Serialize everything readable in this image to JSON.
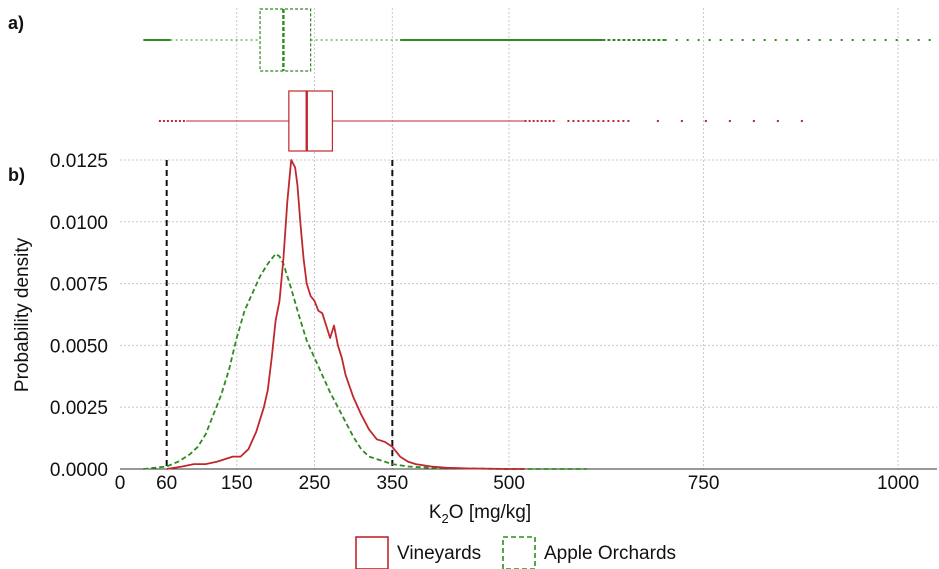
{
  "chart_data": {
    "type": "line",
    "panels": [
      "a)",
      "b)"
    ],
    "xlabel": {
      "base": "K",
      "sub": "2",
      "rest": "O [mg/kg]"
    },
    "ylabel": "Probability density",
    "xlim": [
      0,
      1050
    ],
    "ylim": [
      0,
      0.0125
    ],
    "xticks": [
      0,
      60,
      150,
      250,
      350,
      500,
      750,
      1000
    ],
    "xtick_labels": [
      "0",
      "60",
      "150",
      "250",
      "350",
      "500",
      "750",
      "1000"
    ],
    "yticks": [
      0,
      0.0025,
      0.005,
      0.0075,
      0.01,
      0.0125
    ],
    "ytick_labels": [
      "0.0000",
      "0.0025",
      "0.0050",
      "0.0075",
      "0.0100",
      "0.0125"
    ],
    "vlines": [
      60,
      350
    ],
    "grid": true,
    "legend_position": "bottom-center",
    "series": [
      {
        "name": "Vineyards",
        "color": "#c0282d",
        "dash": "solid",
        "density": {
          "x": [
            60,
            80,
            95,
            110,
            125,
            135,
            145,
            155,
            165,
            175,
            185,
            190,
            195,
            200,
            205,
            210,
            215,
            220,
            225,
            228,
            232,
            236,
            240,
            245,
            250,
            255,
            260,
            265,
            270,
            275,
            280,
            285,
            290,
            300,
            310,
            320,
            330,
            340,
            350,
            360,
            370,
            380,
            400,
            420,
            450,
            500,
            520
          ],
          "y": [
            0,
            0.0001,
            0.0002,
            0.0002,
            0.0003,
            0.0004,
            0.0005,
            0.0005,
            0.0008,
            0.0015,
            0.0025,
            0.0032,
            0.0045,
            0.006,
            0.0068,
            0.0085,
            0.0108,
            0.0125,
            0.0122,
            0.0115,
            0.0099,
            0.0085,
            0.0075,
            0.007,
            0.0068,
            0.0064,
            0.0063,
            0.0058,
            0.0053,
            0.0058,
            0.005,
            0.0045,
            0.0038,
            0.0029,
            0.0022,
            0.0016,
            0.0012,
            0.0011,
            0.0009,
            0.0005,
            0.0003,
            0.0002,
            0.0001,
            5e-05,
            2e-05,
            0,
            0
          ]
        },
        "box": {
          "whisker_low": 85,
          "q1": 217,
          "median": 240,
          "q3": 273,
          "whisker_high": 520
        }
      },
      {
        "name": "Apple Orchards",
        "color": "#2e8b1f",
        "dash": "dashed",
        "density": {
          "x": [
            30,
            60,
            75,
            90,
            100,
            110,
            120,
            130,
            140,
            150,
            160,
            170,
            180,
            190,
            200,
            205,
            210,
            220,
            230,
            240,
            250,
            260,
            270,
            280,
            290,
            300,
            310,
            320,
            330,
            340,
            350,
            370,
            400,
            450,
            500,
            600
          ],
          "y": [
            0,
            0.0001,
            0.0003,
            0.0006,
            0.0009,
            0.0014,
            0.0022,
            0.003,
            0.004,
            0.0053,
            0.0064,
            0.0071,
            0.0078,
            0.0083,
            0.0087,
            0.0086,
            0.0083,
            0.0073,
            0.0062,
            0.0052,
            0.0045,
            0.0038,
            0.0031,
            0.0025,
            0.0019,
            0.0013,
            0.0008,
            0.0005,
            0.0004,
            0.0003,
            0.0002,
            0.0001,
            5e-05,
            2e-05,
            0,
            0
          ]
        },
        "box": {
          "whisker_low": 65,
          "q1": 180,
          "median": 210,
          "q3": 245,
          "whisker_high": 360
        }
      }
    ]
  }
}
